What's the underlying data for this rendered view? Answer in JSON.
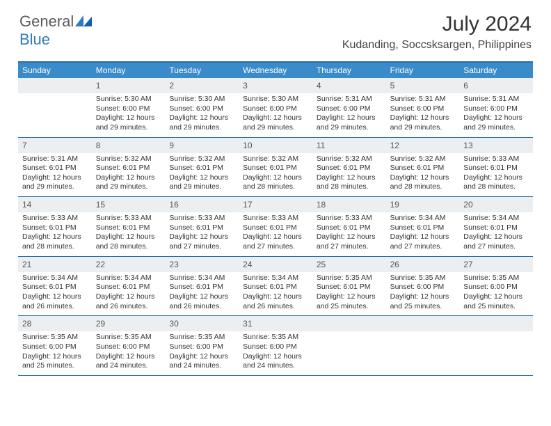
{
  "logo": {
    "text_general": "General",
    "text_blue": "Blue"
  },
  "header": {
    "month_title": "July 2024",
    "location": "Kudanding, Soccsksargen, Philippines"
  },
  "colors": {
    "header_bar": "#3a8bc9",
    "rule": "#2a6fa8",
    "daynum_bg": "#eceff1",
    "logo_blue": "#2f7bbf",
    "text": "#333333"
  },
  "day_names": [
    "Sunday",
    "Monday",
    "Tuesday",
    "Wednesday",
    "Thursday",
    "Friday",
    "Saturday"
  ],
  "weeks": [
    [
      {
        "num": "",
        "lines": [
          "",
          "",
          "",
          ""
        ]
      },
      {
        "num": "1",
        "lines": [
          "Sunrise: 5:30 AM",
          "Sunset: 6:00 PM",
          "Daylight: 12 hours",
          "and 29 minutes."
        ]
      },
      {
        "num": "2",
        "lines": [
          "Sunrise: 5:30 AM",
          "Sunset: 6:00 PM",
          "Daylight: 12 hours",
          "and 29 minutes."
        ]
      },
      {
        "num": "3",
        "lines": [
          "Sunrise: 5:30 AM",
          "Sunset: 6:00 PM",
          "Daylight: 12 hours",
          "and 29 minutes."
        ]
      },
      {
        "num": "4",
        "lines": [
          "Sunrise: 5:31 AM",
          "Sunset: 6:00 PM",
          "Daylight: 12 hours",
          "and 29 minutes."
        ]
      },
      {
        "num": "5",
        "lines": [
          "Sunrise: 5:31 AM",
          "Sunset: 6:00 PM",
          "Daylight: 12 hours",
          "and 29 minutes."
        ]
      },
      {
        "num": "6",
        "lines": [
          "Sunrise: 5:31 AM",
          "Sunset: 6:00 PM",
          "Daylight: 12 hours",
          "and 29 minutes."
        ]
      }
    ],
    [
      {
        "num": "7",
        "lines": [
          "Sunrise: 5:31 AM",
          "Sunset: 6:01 PM",
          "Daylight: 12 hours",
          "and 29 minutes."
        ]
      },
      {
        "num": "8",
        "lines": [
          "Sunrise: 5:32 AM",
          "Sunset: 6:01 PM",
          "Daylight: 12 hours",
          "and 29 minutes."
        ]
      },
      {
        "num": "9",
        "lines": [
          "Sunrise: 5:32 AM",
          "Sunset: 6:01 PM",
          "Daylight: 12 hours",
          "and 29 minutes."
        ]
      },
      {
        "num": "10",
        "lines": [
          "Sunrise: 5:32 AM",
          "Sunset: 6:01 PM",
          "Daylight: 12 hours",
          "and 28 minutes."
        ]
      },
      {
        "num": "11",
        "lines": [
          "Sunrise: 5:32 AM",
          "Sunset: 6:01 PM",
          "Daylight: 12 hours",
          "and 28 minutes."
        ]
      },
      {
        "num": "12",
        "lines": [
          "Sunrise: 5:32 AM",
          "Sunset: 6:01 PM",
          "Daylight: 12 hours",
          "and 28 minutes."
        ]
      },
      {
        "num": "13",
        "lines": [
          "Sunrise: 5:33 AM",
          "Sunset: 6:01 PM",
          "Daylight: 12 hours",
          "and 28 minutes."
        ]
      }
    ],
    [
      {
        "num": "14",
        "lines": [
          "Sunrise: 5:33 AM",
          "Sunset: 6:01 PM",
          "Daylight: 12 hours",
          "and 28 minutes."
        ]
      },
      {
        "num": "15",
        "lines": [
          "Sunrise: 5:33 AM",
          "Sunset: 6:01 PM",
          "Daylight: 12 hours",
          "and 28 minutes."
        ]
      },
      {
        "num": "16",
        "lines": [
          "Sunrise: 5:33 AM",
          "Sunset: 6:01 PM",
          "Daylight: 12 hours",
          "and 27 minutes."
        ]
      },
      {
        "num": "17",
        "lines": [
          "Sunrise: 5:33 AM",
          "Sunset: 6:01 PM",
          "Daylight: 12 hours",
          "and 27 minutes."
        ]
      },
      {
        "num": "18",
        "lines": [
          "Sunrise: 5:33 AM",
          "Sunset: 6:01 PM",
          "Daylight: 12 hours",
          "and 27 minutes."
        ]
      },
      {
        "num": "19",
        "lines": [
          "Sunrise: 5:34 AM",
          "Sunset: 6:01 PM",
          "Daylight: 12 hours",
          "and 27 minutes."
        ]
      },
      {
        "num": "20",
        "lines": [
          "Sunrise: 5:34 AM",
          "Sunset: 6:01 PM",
          "Daylight: 12 hours",
          "and 27 minutes."
        ]
      }
    ],
    [
      {
        "num": "21",
        "lines": [
          "Sunrise: 5:34 AM",
          "Sunset: 6:01 PM",
          "Daylight: 12 hours",
          "and 26 minutes."
        ]
      },
      {
        "num": "22",
        "lines": [
          "Sunrise: 5:34 AM",
          "Sunset: 6:01 PM",
          "Daylight: 12 hours",
          "and 26 minutes."
        ]
      },
      {
        "num": "23",
        "lines": [
          "Sunrise: 5:34 AM",
          "Sunset: 6:01 PM",
          "Daylight: 12 hours",
          "and 26 minutes."
        ]
      },
      {
        "num": "24",
        "lines": [
          "Sunrise: 5:34 AM",
          "Sunset: 6:01 PM",
          "Daylight: 12 hours",
          "and 26 minutes."
        ]
      },
      {
        "num": "25",
        "lines": [
          "Sunrise: 5:35 AM",
          "Sunset: 6:01 PM",
          "Daylight: 12 hours",
          "and 25 minutes."
        ]
      },
      {
        "num": "26",
        "lines": [
          "Sunrise: 5:35 AM",
          "Sunset: 6:00 PM",
          "Daylight: 12 hours",
          "and 25 minutes."
        ]
      },
      {
        "num": "27",
        "lines": [
          "Sunrise: 5:35 AM",
          "Sunset: 6:00 PM",
          "Daylight: 12 hours",
          "and 25 minutes."
        ]
      }
    ],
    [
      {
        "num": "28",
        "lines": [
          "Sunrise: 5:35 AM",
          "Sunset: 6:00 PM",
          "Daylight: 12 hours",
          "and 25 minutes."
        ]
      },
      {
        "num": "29",
        "lines": [
          "Sunrise: 5:35 AM",
          "Sunset: 6:00 PM",
          "Daylight: 12 hours",
          "and 24 minutes."
        ]
      },
      {
        "num": "30",
        "lines": [
          "Sunrise: 5:35 AM",
          "Sunset: 6:00 PM",
          "Daylight: 12 hours",
          "and 24 minutes."
        ]
      },
      {
        "num": "31",
        "lines": [
          "Sunrise: 5:35 AM",
          "Sunset: 6:00 PM",
          "Daylight: 12 hours",
          "and 24 minutes."
        ]
      },
      {
        "num": "",
        "lines": [
          "",
          "",
          "",
          ""
        ]
      },
      {
        "num": "",
        "lines": [
          "",
          "",
          "",
          ""
        ]
      },
      {
        "num": "",
        "lines": [
          "",
          "",
          "",
          ""
        ]
      }
    ]
  ]
}
